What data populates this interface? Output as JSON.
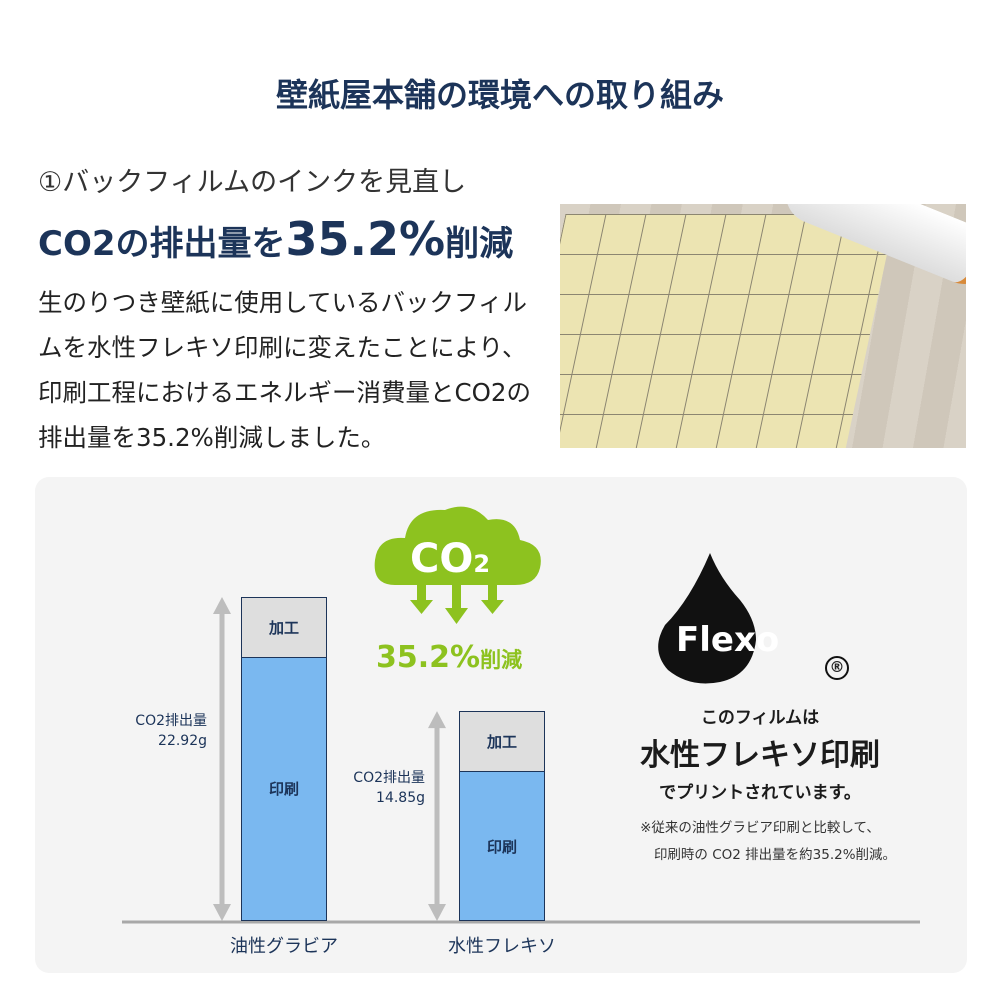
{
  "title": "壁紙屋本舗の環境への取り組み",
  "subtitle": "①バックフィルムのインクを見直し",
  "headline": {
    "pre": "CO2の排出量を",
    "big": "35.2%",
    "post": "削減"
  },
  "body": "生のりつき壁紙に使用しているバックフィルムを水性フレキソ印刷に変えたことにより、印刷工程におけるエネルギー消費量とCO2の排出量を35.2%削減しました。",
  "cloud": {
    "label": "CO",
    "sub": "2",
    "reduction": "35.2%",
    "reduction_suffix": "削減",
    "color": "#8dc21f"
  },
  "flexo": {
    "logo": "Flexo",
    "reg": "®",
    "line1": "このフィルムは",
    "line2": "水性フレキソ印刷",
    "line3": "でプリントされています。",
    "note1": "※従来の油性グラビア印刷と比較して、",
    "note2": "印刷時の CO2 排出量を約35.2%削減。"
  },
  "chart_data": {
    "type": "bar",
    "stacked": true,
    "categories": [
      "油性グラビア",
      "水性フレキソ"
    ],
    "series": [
      {
        "name": "印刷",
        "values": [
          18.7,
          10.6
        ]
      },
      {
        "name": "加工",
        "values": [
          4.22,
          4.25
        ]
      }
    ],
    "totals": [
      22.92,
      14.85
    ],
    "total_labels": [
      {
        "l1": "CO2排出量",
        "l2": "22.92g"
      },
      {
        "l1": "CO2排出量",
        "l2": "14.85g"
      }
    ],
    "colors": {
      "印刷": "#7ab8f0",
      "加工": "#dedede"
    },
    "ylim": [
      0,
      22.92
    ],
    "grid": false
  }
}
